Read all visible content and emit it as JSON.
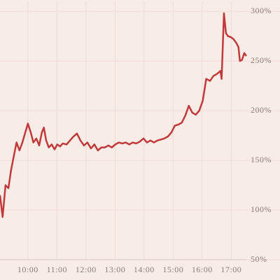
{
  "chart_data": {
    "type": "line",
    "x": [
      9.04,
      9.13,
      9.23,
      9.33,
      9.42,
      9.52,
      9.61,
      9.71,
      9.81,
      9.9,
      10.0,
      10.1,
      10.19,
      10.29,
      10.39,
      10.48,
      10.55,
      10.63,
      10.72,
      10.82,
      10.92,
      11.01,
      11.11,
      11.2,
      11.33,
      11.45,
      11.57,
      11.69,
      11.81,
      11.93,
      12.05,
      12.17,
      12.29,
      12.41,
      12.53,
      12.65,
      12.77,
      12.89,
      13.01,
      13.13,
      13.25,
      13.37,
      13.49,
      13.61,
      13.73,
      13.86,
      13.98,
      14.1,
      14.22,
      14.34,
      14.46,
      14.58,
      14.7,
      14.82,
      14.94,
      15.06,
      15.18,
      15.3,
      15.42,
      15.54,
      15.66,
      15.78,
      15.9,
      16.02,
      16.14,
      16.27,
      16.39,
      16.51,
      16.63,
      16.67,
      16.75,
      16.82,
      16.89,
      16.99,
      17.08,
      17.18,
      17.25,
      17.3,
      17.37,
      17.45,
      17.52
    ],
    "series": [
      {
        "color": "#c0393b",
        "values": [
          115,
          93,
          125,
          122,
          140,
          155,
          168,
          160,
          168,
          177,
          187,
          178,
          168,
          172,
          165,
          178,
          183,
          170,
          163,
          166,
          161,
          166,
          164,
          167,
          166,
          170,
          174,
          177,
          170,
          165,
          168,
          162,
          166,
          160,
          163,
          163,
          165,
          163,
          166,
          168,
          167,
          168,
          166,
          168,
          167,
          169,
          172,
          168,
          170,
          168,
          170,
          171,
          172,
          174,
          178,
          185,
          186,
          188,
          195,
          205,
          198,
          196,
          200,
          210,
          232,
          230,
          235,
          237,
          240,
          232,
          298,
          278,
          275,
          274,
          272,
          268,
          264,
          250,
          251,
          258,
          255
        ]
      }
    ],
    "xlim": [
      9.04,
      18.68
    ],
    "xticks": [
      {
        "value": 10,
        "label": "10:00"
      },
      {
        "value": 11,
        "label": "11:00"
      },
      {
        "value": 12,
        "label": "12:00"
      },
      {
        "value": 13,
        "label": "13:00"
      },
      {
        "value": 14,
        "label": "14:00"
      },
      {
        "value": 15,
        "label": "15:00"
      },
      {
        "value": 16,
        "label": "16:00"
      },
      {
        "value": 17,
        "label": "17:00"
      }
    ],
    "ylim": [
      50,
      310
    ],
    "yticks": [
      {
        "value": 50,
        "label": "50%"
      },
      {
        "value": 100,
        "label": "100%"
      },
      {
        "value": 150,
        "label": "150%"
      },
      {
        "value": 200,
        "label": "200%"
      },
      {
        "value": 250,
        "label": "250%"
      },
      {
        "value": 300,
        "label": "300%"
      }
    ],
    "grid": true
  }
}
